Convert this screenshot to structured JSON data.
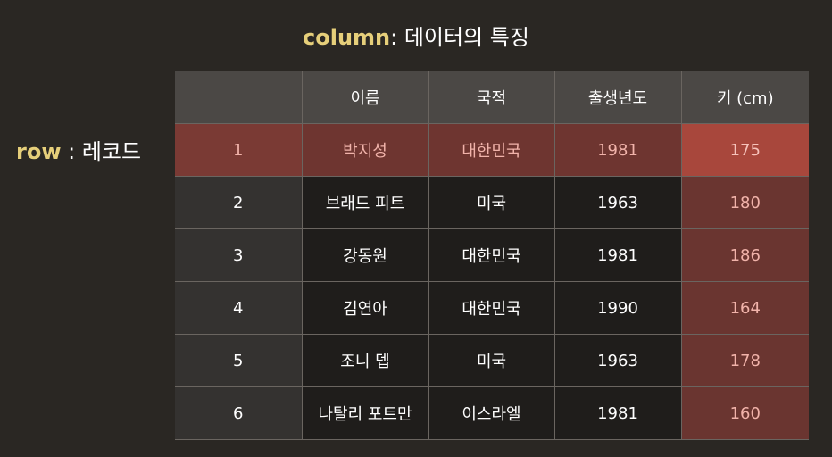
{
  "title": {
    "keyword": "column",
    "rest": ": 데이터의 특징"
  },
  "row_label": {
    "keyword": "row",
    "rest": " : 레코드"
  },
  "table": {
    "headers": [
      "",
      "이름",
      "국적",
      "출생년도",
      "키 (cm)"
    ],
    "rows": [
      [
        "1",
        "박지성",
        "대한민국",
        "1981",
        "175"
      ],
      [
        "2",
        "브래드 피트",
        "미국",
        "1963",
        "180"
      ],
      [
        "3",
        "강동원",
        "대한민국",
        "1981",
        "186"
      ],
      [
        "4",
        "김연아",
        "대한민국",
        "1990",
        "164"
      ],
      [
        "5",
        "조니 뎁",
        "미국",
        "1963",
        "178"
      ],
      [
        "6",
        "나탈리 포트만",
        "이스라엘",
        "1981",
        "160"
      ]
    ]
  },
  "colors": {
    "background": "#2a2723",
    "keyword": "#e6cf7a",
    "highlight_row": "#6e3530",
    "highlight_column": "#6a3530",
    "highlight_cell": "#a8473c"
  }
}
